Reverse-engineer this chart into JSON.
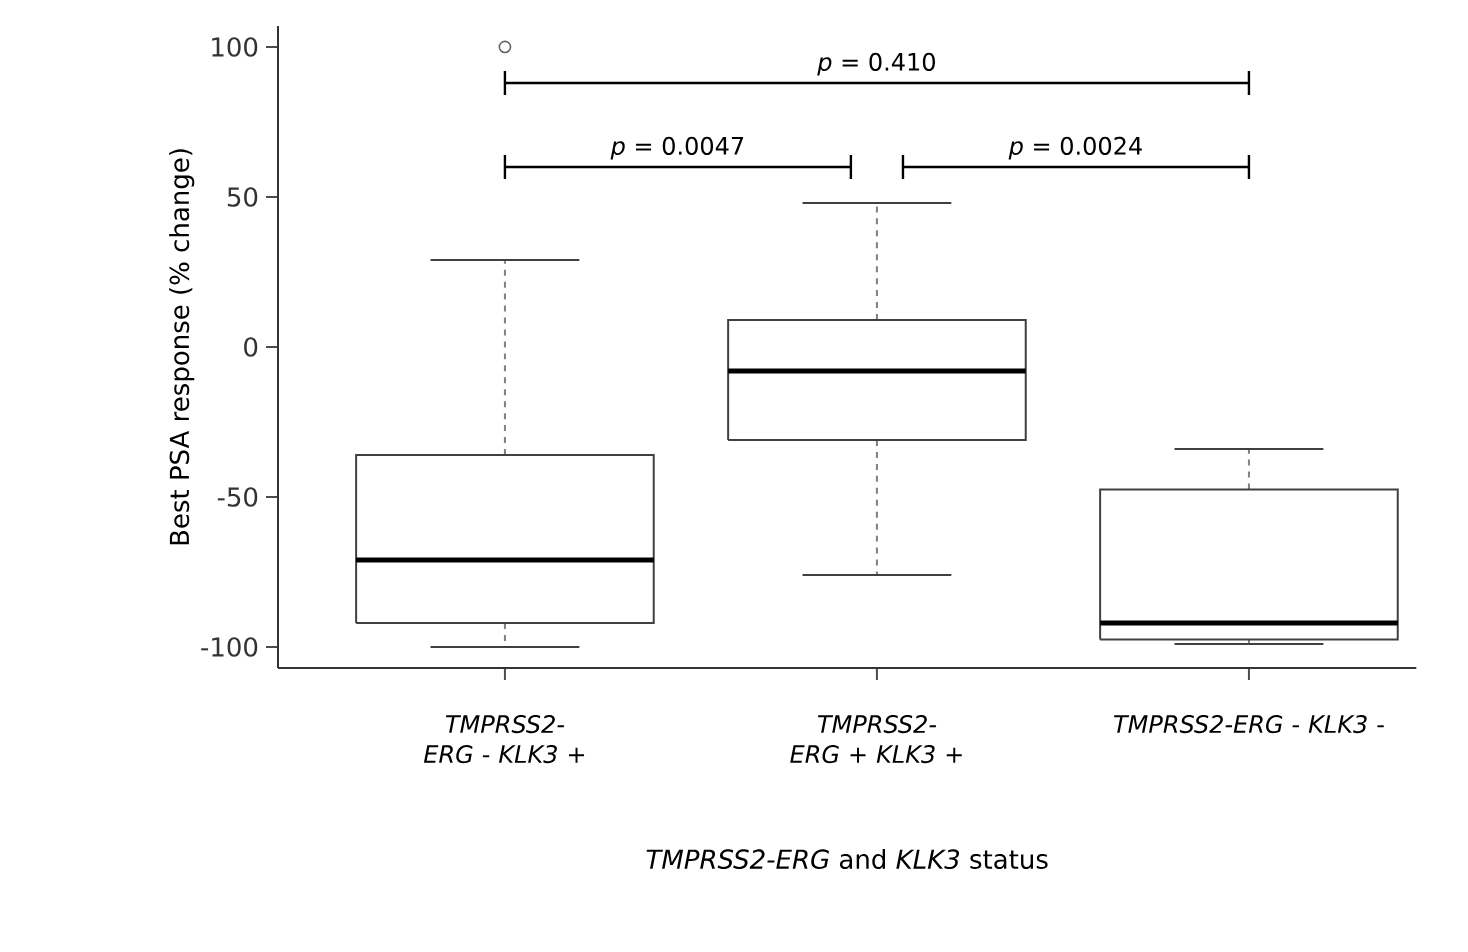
{
  "chart_data": {
    "type": "box",
    "xlabel": "*TMPRSS2-ERG* and *KLK3* status",
    "ylabel": "Best PSA response (% change)",
    "categories": [
      "*TMPRSS2-ERG* - *KLK3* +",
      "*TMPRSS2-ERG* + *KLK3* +",
      "*TMPRSS2-ERG* - *KLK3* -"
    ],
    "boxes": [
      {
        "low": -100,
        "q1": -92,
        "median": -71,
        "q3": -36,
        "high": 29,
        "outliers": [
          100
        ]
      },
      {
        "low": -76,
        "q1": -31,
        "median": -8,
        "q3": 9,
        "high": 48
      },
      {
        "low": -99,
        "q1": -97.5,
        "median": -92,
        "q3": -47.5,
        "high": -34
      }
    ],
    "ylim": [
      -107,
      107
    ],
    "yticks": [
      -100,
      -50,
      0,
      50,
      100
    ],
    "annotations": [
      "*p* = 0.410",
      "*p* = 0.0047",
      "*p* = 0.0024"
    ]
  }
}
